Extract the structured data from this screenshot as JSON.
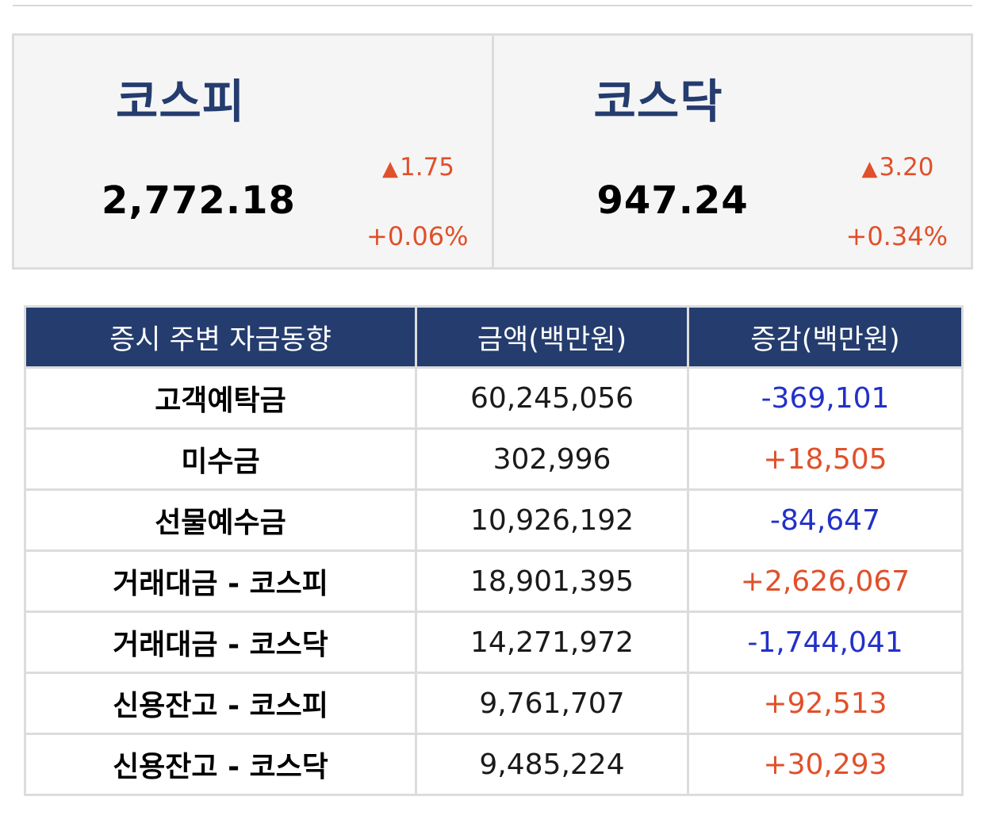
{
  "indices": [
    {
      "name": "코스피",
      "value": "2,772.18",
      "change_symbol": "▲",
      "change": "1.75",
      "rate": "+0.06%"
    },
    {
      "name": "코스닥",
      "value": "947.24",
      "change_symbol": "▲",
      "change": "3.20",
      "rate": "+0.34%"
    }
  ],
  "table": {
    "headers": [
      "증시 주변 자금동향",
      "금액(백만원)",
      "증감(백만원)"
    ],
    "rows": [
      {
        "label": "고객예탁금",
        "amount": "60,245,056",
        "change": "-369,101",
        "direction": "down"
      },
      {
        "label": "미수금",
        "amount": "302,996",
        "change": "+18,505",
        "direction": "up"
      },
      {
        "label": "선물예수금",
        "amount": "10,926,192",
        "change": "-84,647",
        "direction": "down"
      },
      {
        "label": "거래대금 - 코스피",
        "amount": "18,901,395",
        "change": "+2,626,067",
        "direction": "up"
      },
      {
        "label": "거래대금 - 코스닥",
        "amount": "14,271,972",
        "change": "-1,744,041",
        "direction": "down"
      },
      {
        "label": "신용잔고 - 코스피",
        "amount": "9,761,707",
        "change": "+92,513",
        "direction": "up"
      },
      {
        "label": "신용잔고 - 코스닥",
        "amount": "9,485,224",
        "change": "+30,293",
        "direction": "up"
      }
    ]
  },
  "colors": {
    "header_bg": "#243c6e",
    "index_name": "#243c6e",
    "up": "#e0502a",
    "down": "#2230c8",
    "panel_bg": "#f5f5f5",
    "border": "#dcdcdc"
  }
}
